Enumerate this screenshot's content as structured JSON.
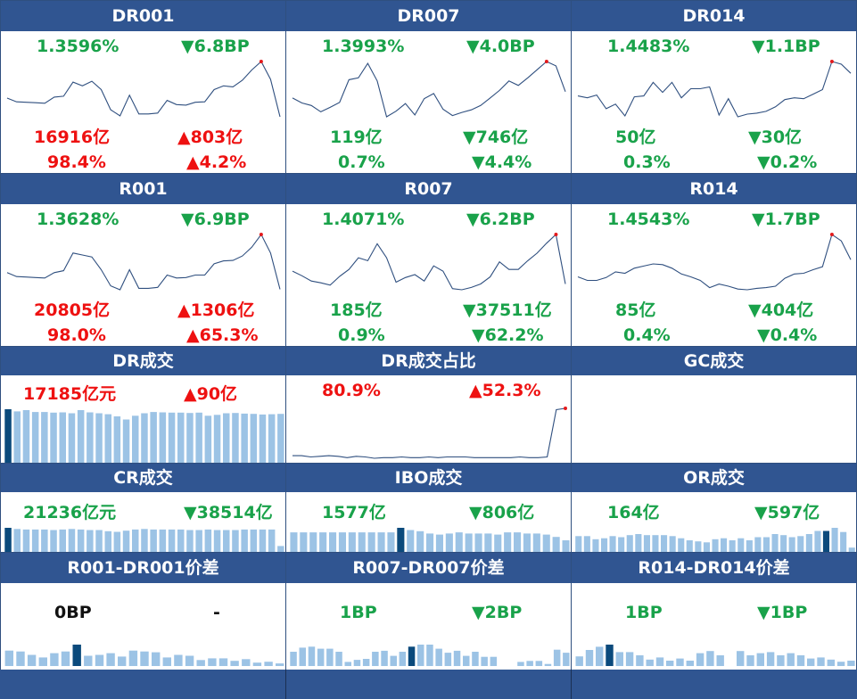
{
  "colors": {
    "header_bg": "#305591",
    "up": "#ee1111",
    "down": "#19a24a",
    "line": "#2f4f7f",
    "bar": "#9cc3e5",
    "bar_highlight": "#0b4a7c"
  },
  "icons": {
    "up": "up-triangle-icon",
    "down": "down-triangle-icon"
  },
  "rate_panels": [
    {
      "title": "DR001",
      "rate": "1.3596%",
      "rate_change": "▼6.8BP",
      "rate_dir": "down",
      "volume": "16916亿",
      "volume_dir": "up",
      "volume_change": "▲803亿",
      "volume_change_dir": "up",
      "share": "98.4%",
      "share_dir": "up",
      "share_change": "▲4.2%",
      "share_change_dir": "up",
      "trend": [
        1.4,
        1.392,
        1.391,
        1.39,
        1.389,
        1.402,
        1.404,
        1.434,
        1.426,
        1.436,
        1.418,
        1.375,
        1.362,
        1.406,
        1.366,
        1.366,
        1.368,
        1.395,
        1.386,
        1.385,
        1.391,
        1.392,
        1.418,
        1.426,
        1.424,
        1.438,
        1.46,
        1.478,
        1.44,
        1.36
      ]
    },
    {
      "title": "DR007",
      "rate": "1.3993%",
      "rate_change": "▼4.0BP",
      "rate_dir": "down",
      "volume": "119亿",
      "volume_dir": "down",
      "volume_change": "▼746亿",
      "volume_change_dir": "down",
      "share": "0.7%",
      "share_dir": "down",
      "share_change": "▼4.4%",
      "share_change_dir": "down",
      "trend": [
        1.41,
        1.402,
        1.398,
        1.388,
        1.395,
        1.403,
        1.439,
        1.442,
        1.465,
        1.437,
        1.38,
        1.389,
        1.401,
        1.383,
        1.409,
        1.417,
        1.392,
        1.382,
        1.387,
        1.391,
        1.398,
        1.41,
        1.422,
        1.437,
        1.43,
        1.442,
        1.455,
        1.468,
        1.461,
        1.42
      ]
    },
    {
      "title": "DR014",
      "rate": "1.4483%",
      "rate_change": "▼1.1BP",
      "rate_dir": "down",
      "volume": "50亿",
      "volume_dir": "down",
      "volume_change": "▼30亿",
      "volume_change_dir": "down",
      "share": "0.3%",
      "share_dir": "down",
      "share_change": "▼0.2%",
      "share_change_dir": "down",
      "trend": [
        1.43,
        1.428,
        1.431,
        1.416,
        1.421,
        1.408,
        1.429,
        1.43,
        1.445,
        1.434,
        1.445,
        1.428,
        1.438,
        1.438,
        1.44,
        1.409,
        1.427,
        1.407,
        1.41,
        1.411,
        1.413,
        1.418,
        1.426,
        1.428,
        1.427,
        1.432,
        1.437,
        1.468,
        1.465,
        1.455
      ]
    },
    {
      "title": "R001",
      "rate": "1.3628%",
      "rate_change": "▼6.9BP",
      "rate_dir": "down",
      "volume": "20805亿",
      "volume_dir": "up",
      "volume_change": "▲1306亿",
      "volume_change_dir": "up",
      "share": "98.0%",
      "share_dir": "up",
      "share_change": "▲65.3%",
      "share_change_dir": "up",
      "trend": [
        1.4,
        1.392,
        1.391,
        1.39,
        1.389,
        1.4,
        1.404,
        1.44,
        1.436,
        1.432,
        1.406,
        1.373,
        1.365,
        1.406,
        1.368,
        1.368,
        1.37,
        1.395,
        1.389,
        1.39,
        1.395,
        1.395,
        1.418,
        1.424,
        1.425,
        1.434,
        1.452,
        1.478,
        1.44,
        1.366
      ]
    },
    {
      "title": "R007",
      "rate": "1.4071%",
      "rate_change": "▼6.2BP",
      "rate_dir": "down",
      "volume": "185亿",
      "volume_dir": "down",
      "volume_change": "▼37511亿",
      "volume_change_dir": "down",
      "share": "0.9%",
      "share_dir": "down",
      "share_change": "▼62.2%",
      "share_change_dir": "down",
      "trend": [
        1.422,
        1.414,
        1.405,
        1.402,
        1.398,
        1.413,
        1.425,
        1.445,
        1.44,
        1.469,
        1.445,
        1.403,
        1.411,
        1.416,
        1.405,
        1.431,
        1.422,
        1.392,
        1.39,
        1.394,
        1.4,
        1.412,
        1.438,
        1.425,
        1.425,
        1.44,
        1.453,
        1.47,
        1.485,
        1.4
      ]
    },
    {
      "title": "R014",
      "rate": "1.4543%",
      "rate_change": "▼1.7BP",
      "rate_dir": "down",
      "volume": "85亿",
      "volume_dir": "down",
      "volume_change": "▼404亿",
      "volume_change_dir": "down",
      "share": "0.4%",
      "share_dir": "down",
      "share_change": "▼0.4%",
      "share_change_dir": "down",
      "trend": [
        1.418,
        1.413,
        1.413,
        1.417,
        1.425,
        1.423,
        1.43,
        1.433,
        1.436,
        1.435,
        1.43,
        1.422,
        1.418,
        1.413,
        1.403,
        1.408,
        1.405,
        1.401,
        1.4,
        1.402,
        1.403,
        1.405,
        1.416,
        1.422,
        1.423,
        1.428,
        1.432,
        1.477,
        1.468,
        1.442
      ]
    }
  ],
  "volume_panels": [
    {
      "title": "DR成交",
      "left_text": "17185亿元",
      "left_dir": "up",
      "right_text": "▲90亿",
      "right_dir": "up",
      "bars": [
        17200,
        16500,
        16900,
        16300,
        16300,
        16100,
        16200,
        15900,
        16900,
        16200,
        15900,
        15600,
        14900,
        13900,
        15100,
        15900,
        16300,
        16200,
        16100,
        16100,
        16000,
        16100,
        15100,
        15400,
        15900,
        16000,
        15800,
        15700,
        15500,
        15600,
        15700
      ],
      "highlight": 0
    },
    {
      "title": "DR成交占比",
      "left_text": "80.9%",
      "left_dir": "up",
      "right_text": "▲52.3%",
      "right_dir": "up",
      "line": [
        9,
        9,
        7,
        8,
        9,
        8,
        6,
        8,
        7,
        5,
        6,
        6,
        7,
        6,
        6,
        7,
        6,
        7,
        7,
        7,
        6,
        6,
        6,
        6,
        6,
        7,
        6,
        6,
        7,
        79,
        81
      ]
    },
    {
      "title": "GC成交",
      "left_text": "",
      "left_dir": "up",
      "right_text": "",
      "right_dir": "up",
      "empty": true
    },
    {
      "title": "CR成交",
      "left_text": "21236亿元",
      "left_dir": "down",
      "right_text": "▼38514亿",
      "right_dir": "down",
      "bars": [
        44,
        42,
        41,
        41,
        41,
        40,
        41,
        42,
        41,
        40,
        40,
        38,
        37,
        39,
        41,
        42,
        41,
        41,
        41,
        41,
        40,
        40,
        41,
        40,
        40,
        40,
        41,
        41,
        41,
        41,
        12
      ],
      "highlight": 0
    },
    {
      "title": "IBO成交",
      "left_text": "1577亿",
      "left_dir": "down",
      "right_text": "▼806亿",
      "right_dir": "down",
      "bars": [
        18,
        18,
        18,
        18,
        18,
        18,
        18,
        18,
        18,
        18,
        18,
        22,
        20,
        19,
        17,
        16,
        17,
        18,
        17,
        17,
        17,
        16,
        18,
        18,
        17,
        17,
        16,
        14,
        11
      ],
      "highlight": 11
    },
    {
      "title": "OR成交",
      "left_text": "164亿",
      "left_dir": "down",
      "right_text": "▼597亿",
      "right_dir": "down",
      "bars": [
        16,
        16,
        13,
        14,
        16,
        15,
        17,
        18,
        17,
        17,
        17,
        16,
        14,
        12,
        11,
        10,
        13,
        14,
        12,
        14,
        12,
        15,
        15,
        18,
        17,
        15,
        16,
        18,
        21,
        21,
        24,
        20,
        5
      ],
      "highlight": 29
    }
  ],
  "spread_panels": [
    {
      "title": "R001-DR001价差",
      "left_text": "0BP",
      "left_dir": "neutral",
      "right_text": "-",
      "right_dir": "neutral",
      "bars": [
        18,
        17,
        13,
        10,
        15,
        17,
        25,
        12,
        13,
        15,
        11,
        18,
        17,
        16,
        10,
        13,
        12,
        7,
        9,
        9,
        6,
        8,
        4,
        5,
        3
      ],
      "highlight": 6
    },
    {
      "title": "R007-DR007价差",
      "left_text": "1BP",
      "left_dir": "down",
      "right_text": "▼2BP",
      "right_dir": "down",
      "bars": [
        14,
        18,
        19,
        17,
        17,
        14,
        4,
        6,
        7,
        14,
        15,
        10,
        14,
        19,
        21,
        21,
        17,
        13,
        15,
        10,
        14,
        9,
        9,
        0,
        0,
        4,
        5,
        5,
        2,
        16,
        13
      ],
      "highlight": 13
    },
    {
      "title": "R014-DR014价差",
      "left_text": "1BP",
      "left_dir": "down",
      "right_text": "▼1BP",
      "right_dir": "down",
      "bars": [
        9,
        15,
        18,
        20,
        13,
        13,
        10,
        6,
        8,
        5,
        7,
        5,
        12,
        14,
        10,
        0,
        14,
        10,
        12,
        13,
        10,
        12,
        10,
        7,
        8,
        6,
        4,
        5
      ],
      "highlight": 3
    }
  ]
}
